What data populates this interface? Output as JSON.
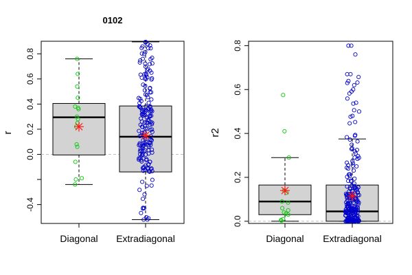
{
  "chart_data": [
    {
      "type": "box",
      "title": "0102",
      "ylabel": "r",
      "ylim": [
        -0.55,
        0.9
      ],
      "yticks": [
        -0.4,
        -0.2,
        0.0,
        0.2,
        0.4,
        0.6,
        0.8
      ],
      "ytick_labels": [
        "-0.4",
        "",
        "0.0",
        "0.2",
        "0.4",
        "0.6",
        "0.8"
      ],
      "reference_line": 0,
      "categories": [
        "Diagonal",
        "Extradiagonal"
      ],
      "boxes": [
        {
          "name": "Diagonal",
          "whisker_low": -0.24,
          "q1": -0.005,
          "median": 0.295,
          "q3": 0.405,
          "whisker_high": 0.76,
          "mean": 0.22,
          "color": "#00cc00"
        },
        {
          "name": "Extradiagonal",
          "whisker_low": -0.52,
          "q1": -0.14,
          "median": 0.14,
          "q3": 0.385,
          "whisker_high": 0.895,
          "mean": 0.15,
          "color": "#0000cc"
        }
      ],
      "points": {
        "Diagonal": [
          0.76,
          0.64,
          0.54,
          0.45,
          0.38,
          0.37,
          0.36,
          0.3,
          0.28,
          0.25,
          0.22,
          0.08,
          0.06,
          -0.06,
          -0.19,
          -0.2,
          -0.24
        ],
        "Extradiagonal": []
      }
    },
    {
      "type": "box",
      "title": "",
      "ylabel": "r2",
      "ylim": [
        -0.01,
        0.82
      ],
      "yticks": [
        0.0,
        0.2,
        0.4,
        0.6,
        0.8
      ],
      "ytick_labels": [
        "0.0",
        "0.2",
        "0.4",
        "0.6",
        "0.8"
      ],
      "reference_line": 0,
      "categories": [
        "Diagonal",
        "Extradiagonal"
      ],
      "boxes": [
        {
          "name": "Diagonal",
          "whisker_low": 0.0,
          "q1": 0.03,
          "median": 0.09,
          "q3": 0.165,
          "whisker_high": 0.29,
          "mean": 0.14,
          "color": "#00cc00"
        },
        {
          "name": "Extradiagonal",
          "whisker_low": 0.0,
          "q1": 0.0,
          "median": 0.045,
          "q3": 0.165,
          "whisker_high": 0.375,
          "mean": 0.115,
          "color": "#0000cc"
        }
      ],
      "points": {
        "Diagonal": [
          0.575,
          0.41,
          0.29,
          0.14,
          0.13,
          0.09,
          0.085,
          0.06,
          0.05,
          0.04,
          0.035,
          0.03,
          0.01,
          0.005,
          0.003
        ],
        "Extradiagonal": []
      }
    }
  ]
}
